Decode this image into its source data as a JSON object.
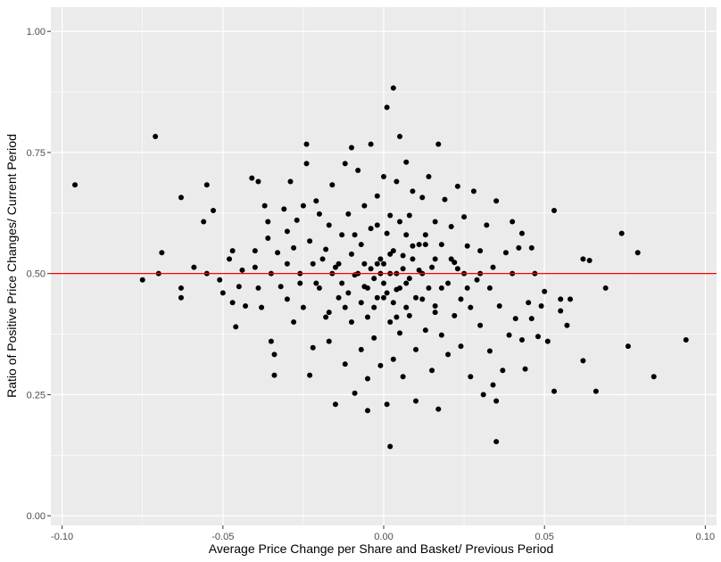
{
  "chart_data": {
    "type": "scatter",
    "title": "",
    "xlabel": "Average Price Change per Share and Basket/ Previous Period",
    "ylabel": "Ratio of Positive Price Changes/ Current Period",
    "xlim": [
      -0.1035,
      0.1035
    ],
    "ylim": [
      -0.02,
      1.05
    ],
    "x_ticks": [
      -0.1,
      -0.05,
      0.0,
      0.05,
      0.1
    ],
    "x_tick_labels": [
      "-0.10",
      "-0.05",
      "0.00",
      "0.05",
      "0.10"
    ],
    "y_ticks": [
      0.0,
      0.25,
      0.5,
      0.75,
      1.0
    ],
    "y_tick_labels": [
      "0.00",
      "0.25",
      "0.50",
      "0.75",
      "1.00"
    ],
    "grid": true,
    "reference_line": {
      "orientation": "horizontal",
      "y": 0.5,
      "color": "#ff0000"
    },
    "colors": {
      "panel": "#ebebeb",
      "grid_major": "#ffffff",
      "point": "#000000",
      "reference_line": "#ff0000"
    },
    "series": [
      {
        "points": [
          [
            -0.096,
            0.683
          ],
          [
            -0.071,
            0.783
          ],
          [
            -0.075,
            0.487
          ],
          [
            -0.07,
            0.5
          ],
          [
            -0.069,
            0.543
          ],
          [
            -0.063,
            0.657
          ],
          [
            -0.063,
            0.47
          ],
          [
            -0.063,
            0.45
          ],
          [
            -0.059,
            0.513
          ],
          [
            -0.056,
            0.607
          ],
          [
            -0.055,
            0.683
          ],
          [
            -0.055,
            0.5
          ],
          [
            -0.053,
            0.63
          ],
          [
            -0.051,
            0.487
          ],
          [
            -0.05,
            0.46
          ],
          [
            -0.048,
            0.53
          ],
          [
            -0.047,
            0.547
          ],
          [
            -0.047,
            0.44
          ],
          [
            -0.046,
            0.39
          ],
          [
            -0.045,
            0.473
          ],
          [
            -0.044,
            0.507
          ],
          [
            -0.043,
            0.433
          ],
          [
            -0.041,
            0.697
          ],
          [
            -0.04,
            0.547
          ],
          [
            -0.04,
            0.513
          ],
          [
            -0.039,
            0.69
          ],
          [
            -0.039,
            0.47
          ],
          [
            -0.038,
            0.43
          ],
          [
            -0.037,
            0.64
          ],
          [
            -0.036,
            0.607
          ],
          [
            -0.036,
            0.573
          ],
          [
            -0.035,
            0.5
          ],
          [
            -0.035,
            0.36
          ],
          [
            -0.034,
            0.333
          ],
          [
            -0.034,
            0.29
          ],
          [
            -0.033,
            0.543
          ],
          [
            -0.032,
            0.473
          ],
          [
            -0.031,
            0.633
          ],
          [
            -0.03,
            0.587
          ],
          [
            -0.03,
            0.447
          ],
          [
            -0.029,
            0.69
          ],
          [
            -0.028,
            0.553
          ],
          [
            -0.028,
            0.4
          ],
          [
            -0.027,
            0.61
          ],
          [
            -0.026,
            0.5
          ],
          [
            -0.025,
            0.64
          ],
          [
            -0.025,
            0.43
          ],
          [
            -0.024,
            0.767
          ],
          [
            -0.024,
            0.727
          ],
          [
            -0.023,
            0.567
          ],
          [
            -0.023,
            0.29
          ],
          [
            -0.022,
            0.347
          ],
          [
            -0.021,
            0.65
          ],
          [
            -0.021,
            0.48
          ],
          [
            -0.02,
            0.623
          ],
          [
            -0.019,
            0.53
          ],
          [
            -0.018,
            0.41
          ],
          [
            -0.017,
            0.6
          ],
          [
            -0.017,
            0.36
          ],
          [
            -0.016,
            0.683
          ],
          [
            -0.015,
            0.513
          ],
          [
            -0.015,
            0.23
          ],
          [
            -0.014,
            0.45
          ],
          [
            -0.013,
            0.58
          ],
          [
            -0.012,
            0.727
          ],
          [
            -0.012,
            0.313
          ],
          [
            -0.011,
            0.623
          ],
          [
            -0.01,
            0.76
          ],
          [
            -0.01,
            0.4
          ],
          [
            -0.009,
            0.497
          ],
          [
            -0.009,
            0.253
          ],
          [
            -0.008,
            0.713
          ],
          [
            -0.007,
            0.56
          ],
          [
            -0.007,
            0.343
          ],
          [
            -0.006,
            0.64
          ],
          [
            -0.006,
            0.473
          ],
          [
            -0.005,
            0.217
          ],
          [
            -0.005,
            0.283
          ],
          [
            -0.004,
            0.767
          ],
          [
            -0.004,
            0.593
          ],
          [
            -0.003,
            0.43
          ],
          [
            -0.003,
            0.367
          ],
          [
            -0.002,
            0.66
          ],
          [
            -0.002,
            0.52
          ],
          [
            -0.001,
            0.5
          ],
          [
            -0.001,
            0.31
          ],
          [
            0.0,
            0.7
          ],
          [
            0.0,
            0.45
          ],
          [
            0.001,
            0.843
          ],
          [
            0.001,
            0.583
          ],
          [
            0.001,
            0.23
          ],
          [
            0.002,
            0.4
          ],
          [
            0.002,
            0.143
          ],
          [
            0.003,
            0.883
          ],
          [
            0.003,
            0.547
          ],
          [
            0.003,
            0.323
          ],
          [
            0.004,
            0.69
          ],
          [
            0.004,
            0.467
          ],
          [
            0.005,
            0.783
          ],
          [
            0.005,
            0.607
          ],
          [
            0.005,
            0.377
          ],
          [
            0.006,
            0.537
          ],
          [
            0.006,
            0.287
          ],
          [
            0.007,
            0.73
          ],
          [
            0.007,
            0.48
          ],
          [
            0.008,
            0.62
          ],
          [
            0.008,
            0.413
          ],
          [
            0.009,
            0.67
          ],
          [
            0.009,
            0.557
          ],
          [
            0.01,
            0.343
          ],
          [
            0.01,
            0.237
          ],
          [
            0.011,
            0.507
          ],
          [
            0.012,
            0.657
          ],
          [
            0.012,
            0.447
          ],
          [
            0.013,
            0.58
          ],
          [
            0.013,
            0.383
          ],
          [
            0.014,
            0.7
          ],
          [
            0.015,
            0.513
          ],
          [
            0.015,
            0.3
          ],
          [
            0.016,
            0.607
          ],
          [
            0.016,
            0.433
          ],
          [
            0.017,
            0.767
          ],
          [
            0.017,
            0.22
          ],
          [
            0.018,
            0.56
          ],
          [
            0.018,
            0.373
          ],
          [
            0.019,
            0.653
          ],
          [
            0.02,
            0.48
          ],
          [
            0.02,
            0.333
          ],
          [
            0.021,
            0.597
          ],
          [
            0.022,
            0.523
          ],
          [
            0.022,
            0.413
          ],
          [
            0.023,
            0.68
          ],
          [
            0.024,
            0.447
          ],
          [
            0.024,
            0.35
          ],
          [
            0.025,
            0.617
          ],
          [
            0.025,
            0.5
          ],
          [
            0.026,
            0.557
          ],
          [
            0.027,
            0.43
          ],
          [
            0.027,
            0.287
          ],
          [
            0.028,
            0.67
          ],
          [
            0.029,
            0.487
          ],
          [
            0.03,
            0.547
          ],
          [
            0.03,
            0.393
          ],
          [
            0.031,
            0.25
          ],
          [
            0.032,
            0.6
          ],
          [
            0.033,
            0.47
          ],
          [
            0.033,
            0.34
          ],
          [
            0.034,
            0.513
          ],
          [
            0.034,
            0.27
          ],
          [
            0.035,
            0.65
          ],
          [
            0.035,
            0.237
          ],
          [
            0.035,
            0.153
          ],
          [
            0.036,
            0.433
          ],
          [
            0.037,
            0.3
          ],
          [
            0.038,
            0.543
          ],
          [
            0.039,
            0.373
          ],
          [
            0.04,
            0.5
          ],
          [
            0.04,
            0.607
          ],
          [
            0.041,
            0.407
          ],
          [
            0.042,
            0.553
          ],
          [
            0.043,
            0.583
          ],
          [
            0.043,
            0.363
          ],
          [
            0.044,
            0.303
          ],
          [
            0.045,
            0.44
          ],
          [
            0.046,
            0.553
          ],
          [
            0.046,
            0.407
          ],
          [
            0.047,
            0.5
          ],
          [
            0.048,
            0.37
          ],
          [
            0.049,
            0.433
          ],
          [
            0.05,
            0.463
          ],
          [
            0.051,
            0.36
          ],
          [
            0.053,
            0.63
          ],
          [
            0.053,
            0.257
          ],
          [
            0.055,
            0.447
          ],
          [
            0.055,
            0.423
          ],
          [
            0.057,
            0.393
          ],
          [
            0.058,
            0.447
          ],
          [
            0.062,
            0.53
          ],
          [
            0.062,
            0.32
          ],
          [
            0.064,
            0.527
          ],
          [
            0.066,
            0.257
          ],
          [
            0.069,
            0.47
          ],
          [
            0.074,
            0.583
          ],
          [
            0.076,
            0.35
          ],
          [
            0.079,
            0.543
          ],
          [
            0.084,
            0.287
          ],
          [
            0.094,
            0.363
          ],
          [
            -0.016,
            0.5
          ],
          [
            -0.014,
            0.52
          ],
          [
            -0.013,
            0.48
          ],
          [
            -0.011,
            0.46
          ],
          [
            -0.01,
            0.54
          ],
          [
            -0.008,
            0.5
          ],
          [
            -0.007,
            0.44
          ],
          [
            -0.006,
            0.52
          ],
          [
            -0.005,
            0.47
          ],
          [
            -0.004,
            0.51
          ],
          [
            -0.003,
            0.49
          ],
          [
            -0.002,
            0.45
          ],
          [
            -0.001,
            0.53
          ],
          [
            0.0,
            0.48
          ],
          [
            0.0,
            0.52
          ],
          [
            0.001,
            0.46
          ],
          [
            0.002,
            0.5
          ],
          [
            0.002,
            0.54
          ],
          [
            0.003,
            0.44
          ],
          [
            0.004,
            0.5
          ],
          [
            0.005,
            0.47
          ],
          [
            0.006,
            0.51
          ],
          [
            0.007,
            0.43
          ],
          [
            0.008,
            0.49
          ],
          [
            0.009,
            0.53
          ],
          [
            0.01,
            0.45
          ],
          [
            0.011,
            0.56
          ],
          [
            0.012,
            0.5
          ],
          [
            0.014,
            0.47
          ],
          [
            0.016,
            0.53
          ],
          [
            -0.02,
            0.47
          ],
          [
            -0.018,
            0.55
          ],
          [
            0.018,
            0.47
          ],
          [
            0.021,
            0.53
          ],
          [
            -0.012,
            0.43
          ],
          [
            0.013,
            0.56
          ],
          [
            -0.009,
            0.58
          ],
          [
            0.007,
            0.58
          ],
          [
            -0.005,
            0.41
          ],
          [
            0.004,
            0.41
          ],
          [
            -0.026,
            0.48
          ],
          [
            0.026,
            0.47
          ],
          [
            -0.022,
            0.52
          ],
          [
            0.023,
            0.51
          ],
          [
            -0.03,
            0.52
          ],
          [
            0.03,
            0.5
          ],
          [
            -0.017,
            0.42
          ],
          [
            0.016,
            0.42
          ],
          [
            -0.002,
            0.6
          ],
          [
            0.002,
            0.62
          ]
        ]
      }
    ]
  }
}
